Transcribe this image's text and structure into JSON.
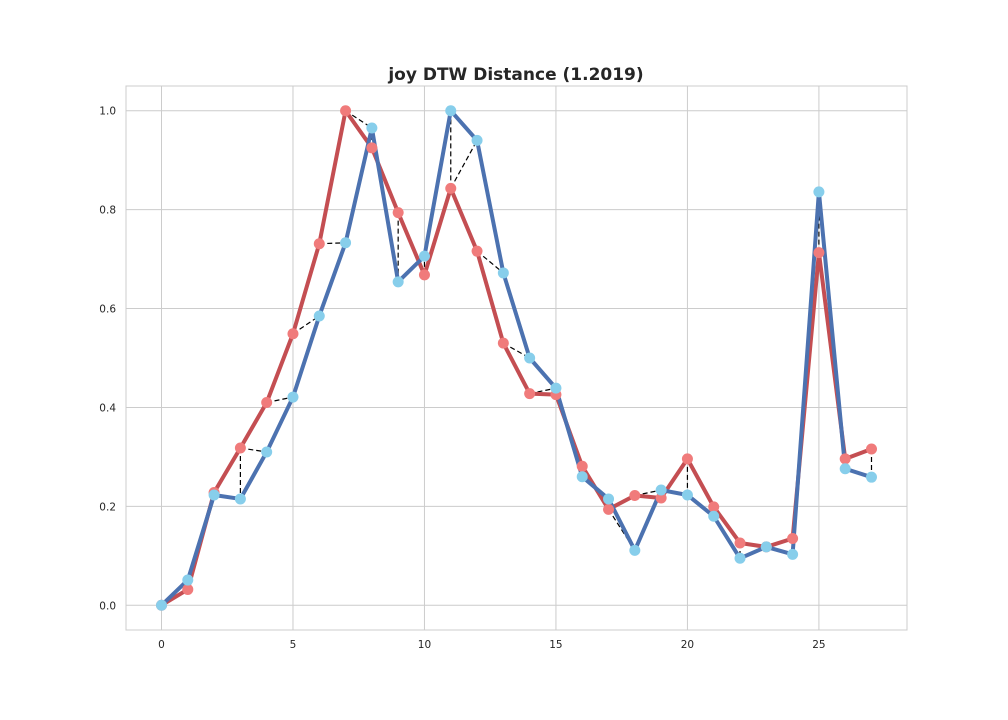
{
  "chart_data": {
    "type": "line",
    "title": "joy DTW Distance (1.2019)",
    "xlabel": "",
    "ylabel": "",
    "xlim": [
      -1.35,
      28.35
    ],
    "ylim": [
      -0.05,
      1.05
    ],
    "x_ticks": [
      0,
      5,
      10,
      15,
      20,
      25
    ],
    "y_ticks": [
      0.0,
      0.2,
      0.4,
      0.6,
      0.8,
      1.0
    ],
    "x_tick_labels": [
      "0",
      "5",
      "10",
      "15",
      "20",
      "25"
    ],
    "y_tick_labels": [
      "0.0",
      "0.2",
      "0.4",
      "0.6",
      "0.8",
      "1.0"
    ],
    "grid": true,
    "legend": "none",
    "series": [
      {
        "line_color": "#c44e52",
        "marker_color": "#f07b7b",
        "x": [
          0,
          1,
          2,
          3,
          4,
          5,
          6,
          7,
          8,
          9,
          10,
          11,
          12,
          13,
          14,
          15,
          16,
          17,
          18,
          19,
          20,
          21,
          22,
          23,
          24,
          25,
          26,
          27
        ],
        "values": [
          0.0,
          0.032,
          0.228,
          0.318,
          0.41,
          0.549,
          0.731,
          1.0,
          0.925,
          0.794,
          0.668,
          0.843,
          0.716,
          0.53,
          0.428,
          0.426,
          0.281,
          0.194,
          0.222,
          0.217,
          0.296,
          0.199,
          0.126,
          0.118,
          0.135,
          0.713,
          0.296,
          0.316
        ]
      },
      {
        "line_color": "#4c72b0",
        "marker_color": "#87ceeb",
        "x": [
          0,
          1,
          2,
          3,
          4,
          5,
          6,
          7,
          8,
          9,
          10,
          11,
          12,
          13,
          14,
          15,
          16,
          17,
          18,
          19,
          20,
          21,
          22,
          23,
          24,
          25,
          26,
          27
        ],
        "values": [
          0.0,
          0.051,
          0.223,
          0.215,
          0.31,
          0.421,
          0.585,
          0.733,
          0.965,
          0.654,
          0.706,
          1.0,
          0.94,
          0.672,
          0.5,
          0.439,
          0.26,
          0.215,
          0.111,
          0.233,
          0.223,
          0.18,
          0.095,
          0.118,
          0.103,
          0.836,
          0.276,
          0.259
        ]
      }
    ],
    "alignment_pairs": [
      [
        0,
        0
      ],
      [
        1,
        1
      ],
      [
        2,
        2
      ],
      [
        3,
        3
      ],
      [
        3,
        4
      ],
      [
        4,
        5
      ],
      [
        5,
        6
      ],
      [
        6,
        7
      ],
      [
        7,
        8
      ],
      [
        8,
        8
      ],
      [
        9,
        9
      ],
      [
        10,
        10
      ],
      [
        11,
        11
      ],
      [
        11,
        12
      ],
      [
        12,
        13
      ],
      [
        13,
        14
      ],
      [
        14,
        15
      ],
      [
        15,
        15
      ],
      [
        16,
        16
      ],
      [
        17,
        17
      ],
      [
        17,
        18
      ],
      [
        18,
        19
      ],
      [
        19,
        19
      ],
      [
        20,
        20
      ],
      [
        21,
        21
      ],
      [
        22,
        22
      ],
      [
        23,
        23
      ],
      [
        24,
        24
      ],
      [
        25,
        25
      ],
      [
        26,
        26
      ],
      [
        27,
        27
      ]
    ],
    "alignment_line_color": "#000000"
  }
}
